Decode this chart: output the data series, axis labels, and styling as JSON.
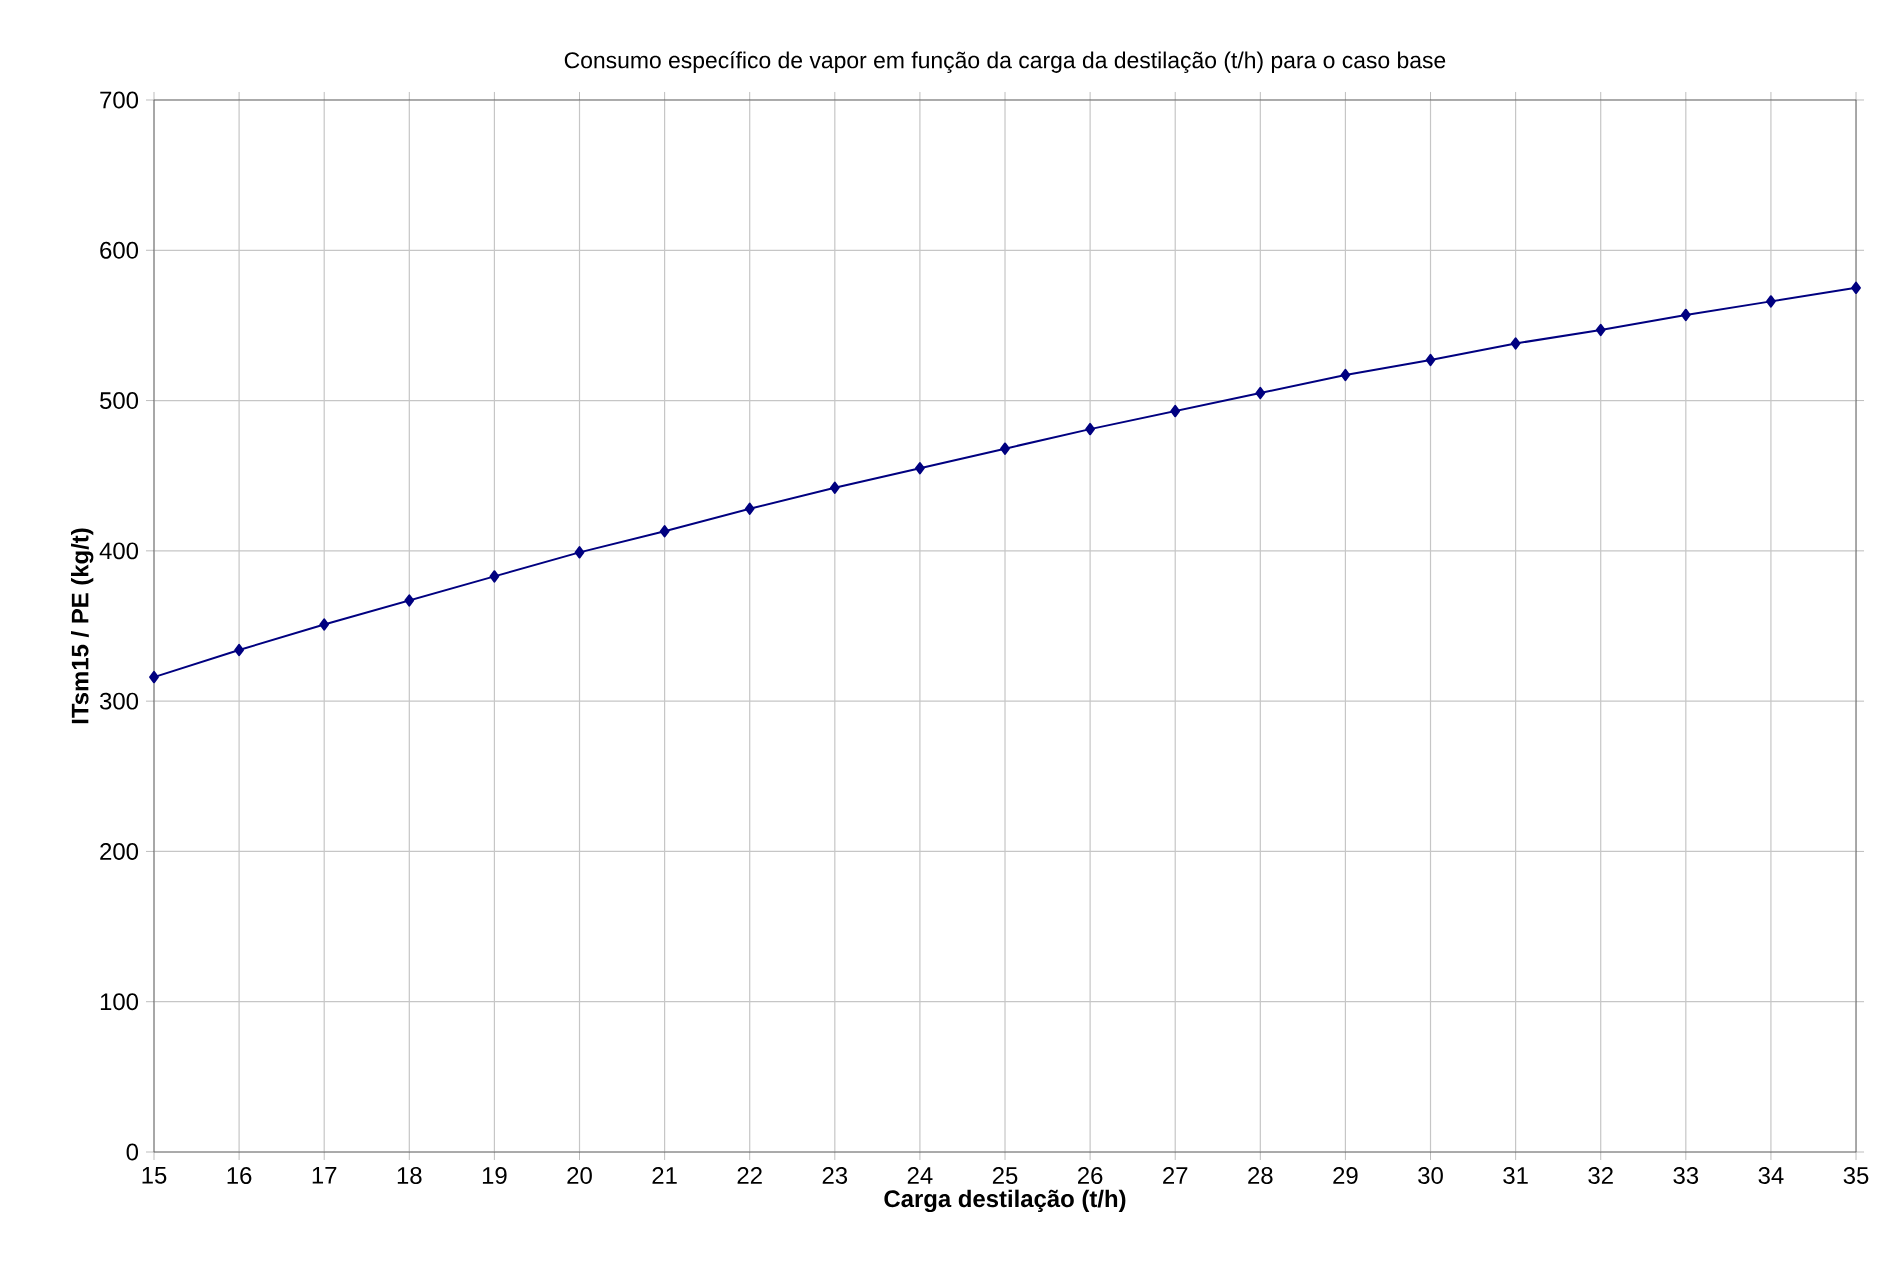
{
  "chart_data": {
    "type": "line",
    "title": "Consumo específico de vapor em função da carga da destilação (t/h) para o caso base",
    "xlabel": "Carga destilação (t/h)",
    "ylabel": "ITsm15 / PE (kg/t)",
    "x": [
      15,
      16,
      17,
      18,
      19,
      20,
      21,
      22,
      23,
      24,
      25,
      26,
      27,
      28,
      29,
      30,
      31,
      32,
      33,
      34,
      35
    ],
    "values": [
      316,
      334,
      351,
      367,
      383,
      399,
      413,
      428,
      442,
      455,
      468,
      481,
      493,
      505,
      517,
      527,
      538,
      547,
      557,
      566,
      575
    ],
    "color": "#000080",
    "marker": "diamond",
    "line_style": "solid",
    "grid": true,
    "xlim": [
      15,
      35
    ],
    "ylim": [
      0,
      700
    ],
    "xticks": [
      15,
      16,
      17,
      18,
      19,
      20,
      21,
      22,
      23,
      24,
      25,
      26,
      27,
      28,
      29,
      30,
      31,
      32,
      33,
      34,
      35
    ],
    "yticks": [
      0,
      100,
      200,
      300,
      400,
      500,
      600,
      700
    ]
  }
}
